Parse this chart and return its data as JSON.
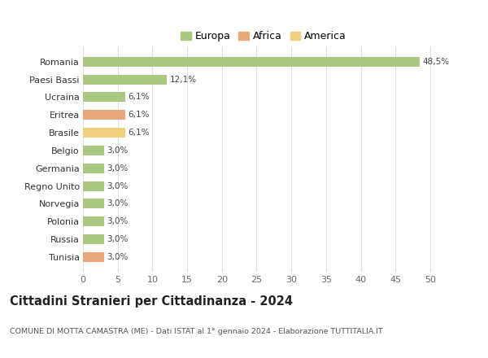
{
  "countries": [
    "Romania",
    "Paesi Bassi",
    "Ucraina",
    "Eritrea",
    "Brasile",
    "Belgio",
    "Germania",
    "Regno Unito",
    "Norvegia",
    "Polonia",
    "Russia",
    "Tunisia"
  ],
  "values": [
    48.5,
    12.1,
    6.1,
    6.1,
    6.1,
    3.0,
    3.0,
    3.0,
    3.0,
    3.0,
    3.0,
    3.0
  ],
  "labels": [
    "48,5%",
    "12,1%",
    "6,1%",
    "6,1%",
    "6,1%",
    "3,0%",
    "3,0%",
    "3,0%",
    "3,0%",
    "3,0%",
    "3,0%",
    "3,0%"
  ],
  "continents": [
    "Europa",
    "Europa",
    "Europa",
    "Africa",
    "America",
    "Europa",
    "Europa",
    "Europa",
    "Europa",
    "Europa",
    "Europa",
    "Africa"
  ],
  "colors": {
    "Europa": "#a8c97f",
    "Africa": "#e8a87c",
    "America": "#f0d080"
  },
  "xlim": [
    0,
    52
  ],
  "xticks": [
    0,
    5,
    10,
    15,
    20,
    25,
    30,
    35,
    40,
    45,
    50
  ],
  "title": "Cittadini Stranieri per Cittadinanza - 2024",
  "subtitle": "COMUNE DI MOTTA CAMASTRA (ME) - Dati ISTAT al 1° gennaio 2024 - Elaborazione TUTTITALIA.IT",
  "background_color": "#ffffff",
  "grid_color": "#dddddd",
  "bar_height": 0.55,
  "legend_order": [
    "Europa",
    "Africa",
    "America"
  ]
}
